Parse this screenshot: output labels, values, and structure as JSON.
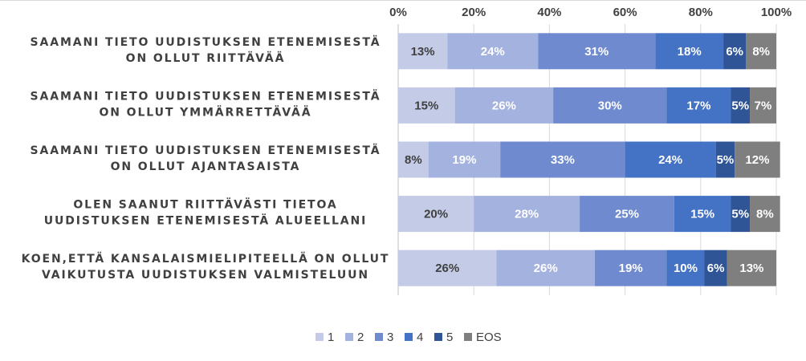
{
  "chart_data": {
    "type": "bar",
    "orientation": "horizontal",
    "stacked": true,
    "percent": true,
    "categories": [
      [
        "SAAMANI TIETO UUDISTUKSEN ETENEMISESTÄ",
        "ON OLLUT RIITTÄVÄÄ"
      ],
      [
        "SAAMANI TIETO UUDISTUKSEN ETENEMISESTÄ",
        "ON OLLUT YMMÄRRETTÄVÄÄ"
      ],
      [
        "SAAMANI TIETO UUDISTUKSEN ETENEMISESTÄ",
        "ON OLLUT AJANTASAISTA"
      ],
      [
        "OLEN SAANUT RIITTÄVÄSTI TIETOA",
        "UUDISTUKSEN ETENEMISESTÄ ALUEELLANI"
      ],
      [
        "KOEN,ETTÄ KANSALAISMIELIPITEELLÄ ON OLLUT",
        "VAIKUTUSTA UUDISTUKSEN VALMISTELUUN"
      ]
    ],
    "series": [
      {
        "name": "1",
        "color": "#c3cbe6",
        "label_color": "#404040",
        "values": [
          13,
          15,
          8,
          20,
          26
        ]
      },
      {
        "name": "2",
        "color": "#a4b2df",
        "label_color": "#ffffff",
        "values": [
          24,
          26,
          19,
          28,
          26
        ]
      },
      {
        "name": "3",
        "color": "#6f8ace",
        "label_color": "#ffffff",
        "values": [
          31,
          30,
          33,
          25,
          19
        ]
      },
      {
        "name": "4",
        "color": "#4472c4",
        "label_color": "#ffffff",
        "values": [
          18,
          17,
          24,
          15,
          10
        ]
      },
      {
        "name": "5",
        "color": "#2f5597",
        "label_color": "#ffffff",
        "values": [
          6,
          5,
          5,
          5,
          6
        ]
      },
      {
        "name": "EOS",
        "color": "#7f7f7f",
        "label_color": "#ffffff",
        "values": [
          8,
          7,
          12,
          8,
          13
        ]
      }
    ],
    "x_ticks": [
      "0%",
      "20%",
      "40%",
      "60%",
      "80%",
      "100%"
    ],
    "xlim": [
      0,
      100
    ],
    "axis_position": "top",
    "grid": true,
    "legend_position": "bottom"
  }
}
